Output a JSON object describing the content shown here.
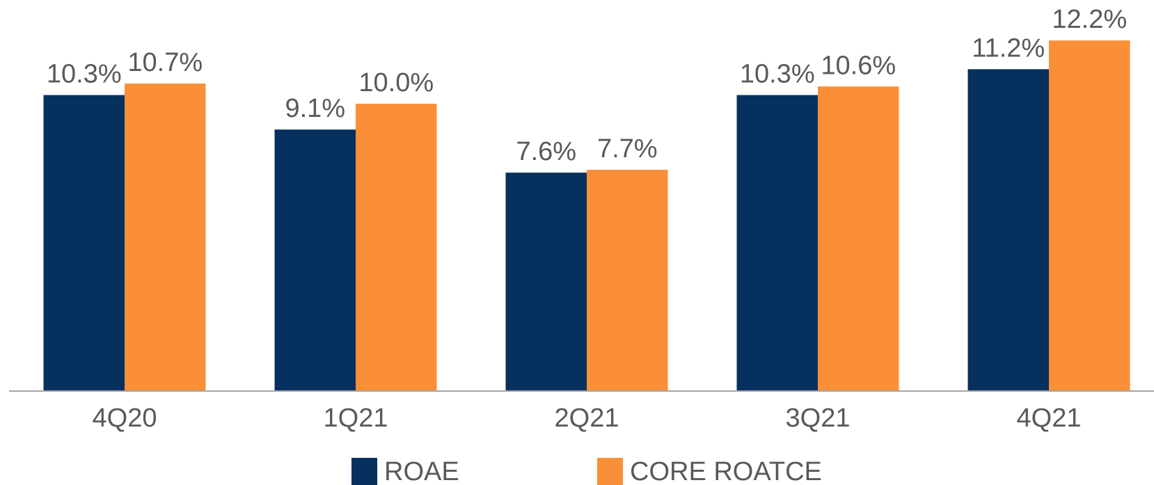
{
  "chart_data": {
    "type": "bar",
    "categories": [
      "4Q20",
      "1Q21",
      "2Q21",
      "3Q21",
      "4Q21"
    ],
    "series": [
      {
        "name": "ROAE",
        "color": "#06315f",
        "values": [
          10.3,
          9.1,
          7.6,
          10.3,
          11.2
        ],
        "value_labels": [
          "10.3%",
          "9.1%",
          "7.6%",
          "10.3%",
          "11.2%"
        ]
      },
      {
        "name": "CORE ROATCE",
        "color": "#fb8f37",
        "values": [
          10.7,
          10.0,
          7.7,
          10.6,
          12.2
        ],
        "value_labels": [
          "10.7%",
          "10.0%",
          "7.7%",
          "10.6%",
          "12.2%"
        ]
      }
    ]
  }
}
